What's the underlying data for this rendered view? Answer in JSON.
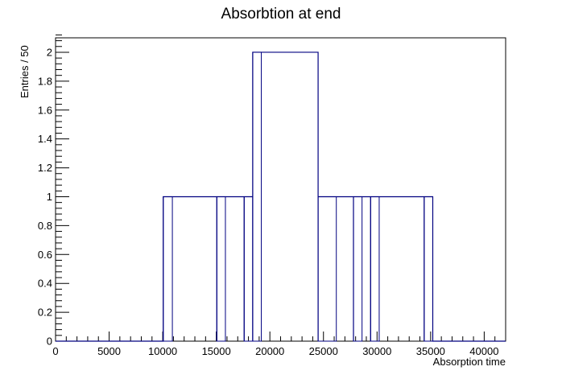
{
  "chart_data": {
    "type": "bar",
    "title": "Absorbtion at end",
    "xlabel": "Absorption time",
    "ylabel": "Entries / 50",
    "xlim": [
      0,
      42000
    ],
    "ylim": [
      0,
      2.1
    ],
    "bin_width": 50,
    "x_ticks": [
      0,
      5000,
      10000,
      15000,
      20000,
      25000,
      30000,
      35000,
      40000
    ],
    "y_ticks": [
      0,
      0.2,
      0.4,
      0.6,
      0.8,
      1,
      1.2,
      1.4,
      1.6,
      1.8,
      2
    ],
    "x_tick_labels": [
      "0",
      "5000",
      "10000",
      "15000",
      "20000",
      "25000",
      "30000",
      "35000",
      "40000"
    ],
    "y_tick_labels": [
      "0",
      "0.2",
      "0.4",
      "0.6",
      "0.8",
      "1",
      "1.2",
      "1.4",
      "1.6",
      "1.8",
      "2"
    ],
    "bins": [
      {
        "x0": 10050,
        "x1": 10900,
        "value": 1
      },
      {
        "x0": 15050,
        "x1": 15850,
        "value": 1
      },
      {
        "x0": 17600,
        "x1": 18400,
        "value": 1
      },
      {
        "x0": 18400,
        "x1": 19200,
        "value": 2
      },
      {
        "x0": 24500,
        "x1": 26200,
        "value": 1
      },
      {
        "x0": 27800,
        "x1": 28600,
        "value": 1
      },
      {
        "x0": 29400,
        "x1": 30200,
        "value": 1
      },
      {
        "x0": 34400,
        "x1": 35200,
        "value": 1
      }
    ],
    "grid": false,
    "legend": "none",
    "line_color": "#000080",
    "frame_color": "#000000"
  }
}
